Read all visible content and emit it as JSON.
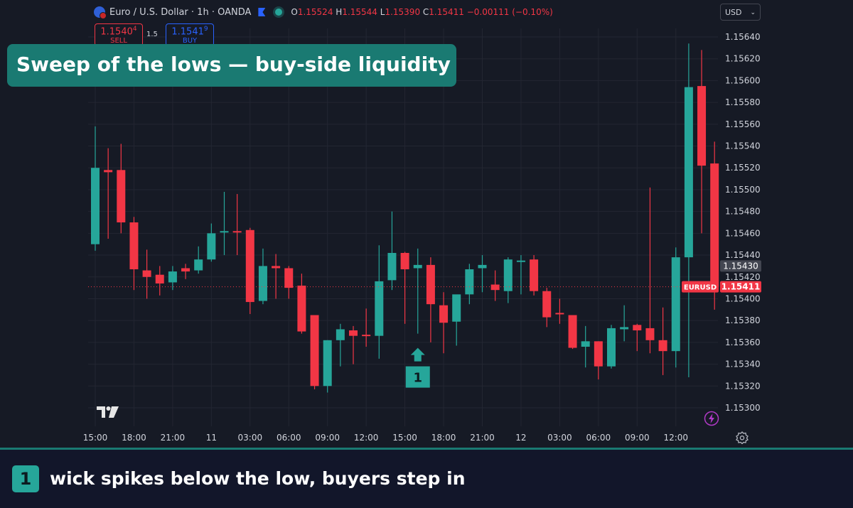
{
  "legend": {
    "symbol": "Euro / U.S. Dollar · 1h · OANDA",
    "o_label": "O",
    "o_value": "1.15524",
    "h_label": "H",
    "h_value": "1.15544",
    "l_label": "L",
    "l_value": "1.15390",
    "c_label": "C",
    "c_value": "1.15411",
    "change": "−0.00111 (−0.10%)"
  },
  "trade": {
    "sell_price": "1.1540",
    "sell_sup": "4",
    "sell_label": "SELL",
    "spread": "1.5",
    "buy_price": "1.1541",
    "buy_sup": "9",
    "buy_label": "BUY"
  },
  "currency": {
    "value": "USD"
  },
  "banner": {
    "title": "Sweep of the lows  —  buy-side liquidity"
  },
  "caption": {
    "badge": "1",
    "text": "wick spikes below the low, buyers step in"
  },
  "colors": {
    "up": "#26a69a",
    "down": "#f23645",
    "accent": "#1a7a72",
    "background": "#161a25"
  },
  "icons": [
    "tradingview-logo-icon",
    "gear-icon",
    "lightning-icon",
    "bookmark-flag-icon",
    "live-dot-icon",
    "euro-flag-icon"
  ],
  "chart_data": {
    "type": "candlestick",
    "symbol": "EURUSD",
    "timeframe": "1h",
    "ylim": [
      1.15288,
      1.15658
    ],
    "y_ticks": [
      "1.15640",
      "1.15620",
      "1.15600",
      "1.15580",
      "1.15560",
      "1.15540",
      "1.15520",
      "1.15500",
      "1.15480",
      "1.15460",
      "1.15440",
      "1.15420",
      "1.15400",
      "1.15380",
      "1.15360",
      "1.15340",
      "1.15320",
      "1.15300"
    ],
    "x_ticks": [
      {
        "label": "15:00",
        "i": 0
      },
      {
        "label": "18:00",
        "i": 3
      },
      {
        "label": "21:00",
        "i": 6
      },
      {
        "label": "11",
        "i": 9
      },
      {
        "label": "03:00",
        "i": 12
      },
      {
        "label": "06:00",
        "i": 15
      },
      {
        "label": "09:00",
        "i": 18
      },
      {
        "label": "12:00",
        "i": 21
      },
      {
        "label": "15:00",
        "i": 24
      },
      {
        "label": "18:00",
        "i": 27
      },
      {
        "label": "21:00",
        "i": 30
      },
      {
        "label": "12",
        "i": 33
      },
      {
        "label": "03:00",
        "i": 36
      },
      {
        "label": "06:00",
        "i": 39
      },
      {
        "label": "09:00",
        "i": 42
      },
      {
        "label": "12:00",
        "i": 45
      }
    ],
    "candles": [
      {
        "o": 1.1545,
        "h": 1.15558,
        "l": 1.15444,
        "c": 1.1552
      },
      {
        "o": 1.15518,
        "h": 1.15538,
        "l": 1.15455,
        "c": 1.15516
      },
      {
        "o": 1.15518,
        "h": 1.15542,
        "l": 1.1546,
        "c": 1.1547
      },
      {
        "o": 1.1547,
        "h": 1.15475,
        "l": 1.15408,
        "c": 1.15427
      },
      {
        "o": 1.15426,
        "h": 1.15445,
        "l": 1.154,
        "c": 1.1542
      },
      {
        "o": 1.15422,
        "h": 1.1543,
        "l": 1.15403,
        "c": 1.15414
      },
      {
        "o": 1.15415,
        "h": 1.1543,
        "l": 1.15408,
        "c": 1.15425
      },
      {
        "o": 1.15428,
        "h": 1.15432,
        "l": 1.15418,
        "c": 1.15425
      },
      {
        "o": 1.15426,
        "h": 1.15448,
        "l": 1.15423,
        "c": 1.15436
      },
      {
        "o": 1.15436,
        "h": 1.15469,
        "l": 1.15434,
        "c": 1.1546
      },
      {
        "o": 1.15461,
        "h": 1.15498,
        "l": 1.1544,
        "c": 1.15462
      },
      {
        "o": 1.15462,
        "h": 1.15496,
        "l": 1.1544,
        "c": 1.15461
      },
      {
        "o": 1.15463,
        "h": 1.15465,
        "l": 1.15386,
        "c": 1.15397
      },
      {
        "o": 1.15398,
        "h": 1.15446,
        "l": 1.15395,
        "c": 1.1543
      },
      {
        "o": 1.1543,
        "h": 1.15441,
        "l": 1.154,
        "c": 1.15428
      },
      {
        "o": 1.15428,
        "h": 1.1543,
        "l": 1.154,
        "c": 1.1541
      },
      {
        "o": 1.15412,
        "h": 1.15423,
        "l": 1.15368,
        "c": 1.1537
      },
      {
        "o": 1.15385,
        "h": 1.15385,
        "l": 1.15317,
        "c": 1.1532
      },
      {
        "o": 1.1532,
        "h": 1.15362,
        "l": 1.15314,
        "c": 1.15362
      },
      {
        "o": 1.15362,
        "h": 1.15377,
        "l": 1.15338,
        "c": 1.15372
      },
      {
        "o": 1.15371,
        "h": 1.15375,
        "l": 1.1534,
        "c": 1.15366
      },
      {
        "o": 1.15367,
        "h": 1.15391,
        "l": 1.15356,
        "c": 1.15366
      },
      {
        "o": 1.15366,
        "h": 1.15449,
        "l": 1.15345,
        "c": 1.15416
      },
      {
        "o": 1.15417,
        "h": 1.1548,
        "l": 1.15408,
        "c": 1.15442
      },
      {
        "o": 1.15442,
        "h": 1.15443,
        "l": 1.15377,
        "c": 1.15427
      },
      {
        "o": 1.15428,
        "h": 1.15446,
        "l": 1.15368,
        "c": 1.15431
      },
      {
        "o": 1.15431,
        "h": 1.15438,
        "l": 1.1536,
        "c": 1.15395
      },
      {
        "o": 1.15394,
        "h": 1.15406,
        "l": 1.1535,
        "c": 1.15378
      },
      {
        "o": 1.15379,
        "h": 1.15403,
        "l": 1.15357,
        "c": 1.15404
      },
      {
        "o": 1.15404,
        "h": 1.15432,
        "l": 1.15395,
        "c": 1.15427
      },
      {
        "o": 1.15428,
        "h": 1.1544,
        "l": 1.15406,
        "c": 1.15431
      },
      {
        "o": 1.15413,
        "h": 1.15426,
        "l": 1.15398,
        "c": 1.15408
      },
      {
        "o": 1.15407,
        "h": 1.15438,
        "l": 1.15396,
        "c": 1.15436
      },
      {
        "o": 1.15435,
        "h": 1.1544,
        "l": 1.15404,
        "c": 1.15435
      },
      {
        "o": 1.15436,
        "h": 1.1544,
        "l": 1.15403,
        "c": 1.15407
      },
      {
        "o": 1.15407,
        "h": 1.1541,
        "l": 1.15374,
        "c": 1.15383
      },
      {
        "o": 1.15387,
        "h": 1.154,
        "l": 1.15377,
        "c": 1.15386
      },
      {
        "o": 1.15385,
        "h": 1.15385,
        "l": 1.15354,
        "c": 1.15355
      },
      {
        "o": 1.15356,
        "h": 1.15375,
        "l": 1.15337,
        "c": 1.15361
      },
      {
        "o": 1.15361,
        "h": 1.15361,
        "l": 1.15326,
        "c": 1.15338
      },
      {
        "o": 1.15338,
        "h": 1.15376,
        "l": 1.15336,
        "c": 1.15373
      },
      {
        "o": 1.15372,
        "h": 1.15394,
        "l": 1.15361,
        "c": 1.15374
      },
      {
        "o": 1.15376,
        "h": 1.15377,
        "l": 1.15352,
        "c": 1.15371
      },
      {
        "o": 1.15373,
        "h": 1.15502,
        "l": 1.1535,
        "c": 1.15362
      },
      {
        "o": 1.15362,
        "h": 1.15392,
        "l": 1.1533,
        "c": 1.15352
      },
      {
        "o": 1.15352,
        "h": 1.15447,
        "l": 1.15337,
        "c": 1.15438
      },
      {
        "o": 1.15438,
        "h": 1.15634,
        "l": 1.15328,
        "c": 1.15594
      },
      {
        "o": 1.15595,
        "h": 1.15628,
        "l": 1.1546,
        "c": 1.15522
      },
      {
        "o": 1.15524,
        "h": 1.15544,
        "l": 1.1539,
        "c": 1.15411
      }
    ],
    "price_line": {
      "value": 1.15411,
      "label": "EURUSD",
      "price_label": "1.15411"
    },
    "crosshair": {
      "price_label": "1.15430"
    },
    "annotations": [
      {
        "text": "1",
        "candle_index": 25,
        "kind": "up-arrow-badge"
      }
    ]
  }
}
